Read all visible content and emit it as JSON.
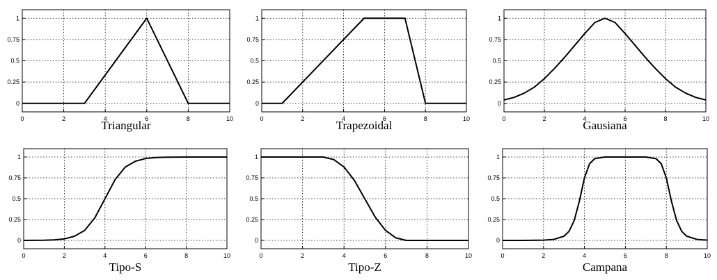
{
  "chart_data": [
    {
      "type": "line",
      "title": "Triangular",
      "xlim": [
        0,
        10
      ],
      "ylim": [
        -0.1,
        1.1
      ],
      "xticks": [
        "0",
        "2",
        "4",
        "6",
        "8",
        "10"
      ],
      "yticks": [
        "0",
        "0.25",
        "0.5",
        "0.75",
        "1"
      ],
      "grid": true,
      "series": [
        {
          "x": [
            0,
            3,
            6,
            8,
            10
          ],
          "y": [
            0,
            0,
            1,
            0,
            0
          ]
        }
      ]
    },
    {
      "type": "line",
      "title": "Trapezoidal",
      "xlim": [
        0,
        10
      ],
      "ylim": [
        -0.1,
        1.1
      ],
      "xticks": [
        "0",
        "2",
        "4",
        "6",
        "8",
        "10"
      ],
      "yticks": [
        "0",
        "0.25",
        "0.5",
        "0.75",
        "1"
      ],
      "grid": true,
      "series": [
        {
          "x": [
            0,
            1,
            5,
            7,
            8,
            10
          ],
          "y": [
            0,
            0,
            1,
            1,
            0,
            0
          ]
        }
      ]
    },
    {
      "type": "line",
      "title": "Gausiana",
      "xlim": [
        0,
        10
      ],
      "ylim": [
        -0.1,
        1.1
      ],
      "xticks": [
        "0",
        "2",
        "4",
        "6",
        "8",
        "10"
      ],
      "yticks": [
        "0",
        "0.25",
        "0.5",
        "0.75",
        "1"
      ],
      "grid": true,
      "series": [
        {
          "x": [
            0,
            0.5,
            1,
            1.5,
            2,
            2.5,
            3,
            3.5,
            4,
            4.5,
            5,
            5.5,
            6,
            6.5,
            7,
            7.5,
            8,
            8.5,
            9,
            9.5,
            10
          ],
          "y": [
            0.04,
            0.07,
            0.12,
            0.19,
            0.29,
            0.41,
            0.54,
            0.68,
            0.82,
            0.95,
            1.0,
            0.95,
            0.82,
            0.68,
            0.54,
            0.41,
            0.29,
            0.19,
            0.12,
            0.07,
            0.04
          ]
        }
      ]
    },
    {
      "type": "line",
      "title": "Tipo-S",
      "xlim": [
        0,
        10
      ],
      "ylim": [
        -0.1,
        1.1
      ],
      "xticks": [
        "0",
        "2",
        "4",
        "6",
        "8",
        "10"
      ],
      "yticks": [
        "0",
        "0.25",
        "0.5",
        "0.75",
        "1"
      ],
      "grid": true,
      "series": [
        {
          "x": [
            0,
            1,
            1.5,
            2,
            2.5,
            3,
            3.5,
            4,
            4.5,
            5,
            5.5,
            6,
            6.5,
            7,
            8,
            9,
            10
          ],
          "y": [
            0,
            0.002,
            0.006,
            0.018,
            0.05,
            0.12,
            0.27,
            0.5,
            0.73,
            0.88,
            0.95,
            0.982,
            0.994,
            0.998,
            1.0,
            1.0,
            1.0
          ]
        }
      ]
    },
    {
      "type": "line",
      "title": "Tipo-Z",
      "xlim": [
        0,
        10
      ],
      "ylim": [
        -0.1,
        1.1
      ],
      "xticks": [
        "0",
        "2",
        "4",
        "6",
        "8",
        "10"
      ],
      "yticks": [
        "0",
        "0.25",
        "0.5",
        "0.75",
        "1"
      ],
      "grid": true,
      "series": [
        {
          "x": [
            0,
            1,
            2,
            3,
            3.5,
            4,
            4.5,
            5,
            5.5,
            6,
            6.5,
            7,
            8,
            9,
            10
          ],
          "y": [
            1,
            1,
            1,
            1,
            0.97,
            0.88,
            0.72,
            0.5,
            0.28,
            0.12,
            0.03,
            0,
            0,
            0,
            0
          ]
        }
      ]
    },
    {
      "type": "line",
      "title": "Campana",
      "xlim": [
        0,
        10
      ],
      "ylim": [
        -0.1,
        1.1
      ],
      "xticks": [
        "0",
        "2",
        "4",
        "6",
        "8",
        "10"
      ],
      "yticks": [
        "0",
        "0.25",
        "0.5",
        "0.75",
        "1"
      ],
      "grid": true,
      "series": [
        {
          "x": [
            0,
            1,
            2,
            2.5,
            3,
            3.25,
            3.5,
            3.75,
            4,
            4.25,
            4.5,
            5,
            6,
            7,
            7.5,
            7.75,
            8,
            8.25,
            8.5,
            8.75,
            9,
            9.5,
            10
          ],
          "y": [
            0,
            0,
            0.003,
            0.012,
            0.05,
            0.11,
            0.24,
            0.47,
            0.75,
            0.92,
            0.98,
            1.0,
            1.0,
            1.0,
            0.98,
            0.92,
            0.75,
            0.47,
            0.24,
            0.11,
            0.05,
            0.012,
            0.003
          ]
        }
      ]
    }
  ]
}
